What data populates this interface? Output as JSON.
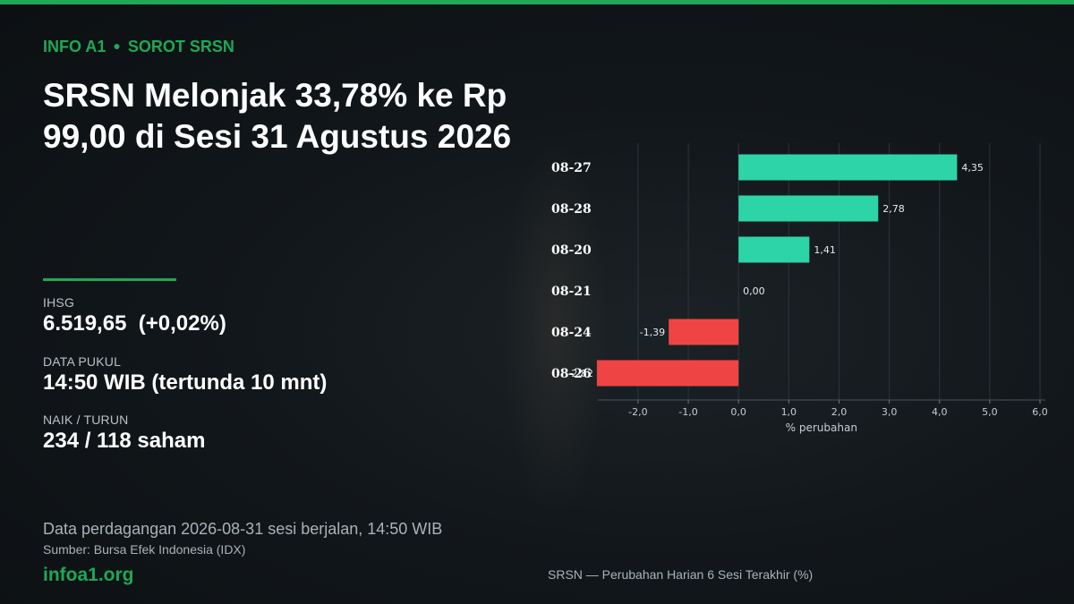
{
  "header": {
    "brand": "INFO A1",
    "section": "SOROT SRSN",
    "title": "SRSN Melonjak 33,78% ke Rp 99,00 di Sesi 31 Agustus 2026"
  },
  "stats": [
    {
      "label": "IHSG",
      "value": "6.519,65  (+0,02%)"
    },
    {
      "label": "DATA PUKUL",
      "value": "14:50 WIB (tertunda 10 mnt)"
    },
    {
      "label": "NAIK / TURUN",
      "value": "234 / 118 saham"
    }
  ],
  "footer": {
    "note": "Data perdagangan 2026-08-31 sesi berjalan, 14:50 WIB",
    "source": "Sumber: Bursa Efek Indonesia (IDX)",
    "site": "infoa1.org",
    "caption": "SRSN — Perubahan Harian 6 Sesi Terakhir (%)"
  },
  "colors": {
    "accent": "#1fa855",
    "positive": "#2dd4a7",
    "negative": "#ef4444"
  },
  "chart_data": {
    "type": "bar",
    "orientation": "horizontal",
    "categories": [
      "08-27",
      "08-28",
      "08-20",
      "08-21",
      "08-24",
      "08-26"
    ],
    "values": [
      4.35,
      2.78,
      1.41,
      0.0,
      -1.39,
      -2.82
    ],
    "value_labels": [
      "4,35",
      "2,78",
      "1,41",
      "0,00",
      "-1,39",
      "-2,82"
    ],
    "xlabel": "% perubahan",
    "xlim": [
      -2.8,
      6.0
    ],
    "xticks": [
      -2.0,
      -1.0,
      0.0,
      1.0,
      2.0,
      3.0,
      4.0,
      5.0,
      6.0
    ],
    "xtick_labels": [
      "-2,0",
      "-1,0",
      "0,0",
      "1,0",
      "2,0",
      "3,0",
      "4,0",
      "5,0",
      "6,0"
    ],
    "grid": true,
    "legend": "none"
  }
}
